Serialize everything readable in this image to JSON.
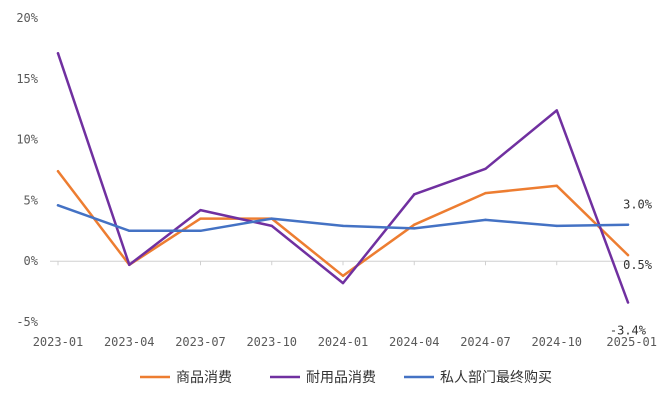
{
  "chart_data": {
    "type": "line",
    "title": "",
    "xlabel": "",
    "ylabel": "",
    "categories": [
      "2023-01",
      "2023-04",
      "2023-07",
      "2023-10",
      "2024-01",
      "2024-04",
      "2024-07",
      "2024-10",
      "2025-01"
    ],
    "ylim": [
      -5,
      20
    ],
    "yticks": [
      -5,
      0,
      5,
      10,
      15,
      20
    ],
    "ytick_labels": [
      "-5%",
      "0%",
      "5%",
      "10%",
      "15%",
      "20%"
    ],
    "grid": false,
    "legend_position": "bottom",
    "series": [
      {
        "name": "商品消费",
        "color": "#ED7D31",
        "values": [
          7.4,
          -0.3,
          3.5,
          3.5,
          -1.2,
          3.0,
          5.6,
          6.2,
          0.5
        ]
      },
      {
        "name": "耐用品消费",
        "color": "#7030A0",
        "values": [
          17.1,
          -0.3,
          4.2,
          2.9,
          -1.8,
          5.5,
          7.6,
          12.4,
          -3.4
        ]
      },
      {
        "name": "私人部门最终购买",
        "color": "#4472C4",
        "values": [
          4.6,
          2.5,
          2.5,
          3.5,
          2.9,
          2.7,
          3.4,
          2.9,
          3.0
        ]
      }
    ],
    "annotations": [
      {
        "text": "3.0%",
        "series": 2,
        "index": 8
      },
      {
        "text": "0.5%",
        "series": 0,
        "index": 8
      },
      {
        "text": "-3.4%",
        "series": 1,
        "index": 8
      }
    ]
  }
}
